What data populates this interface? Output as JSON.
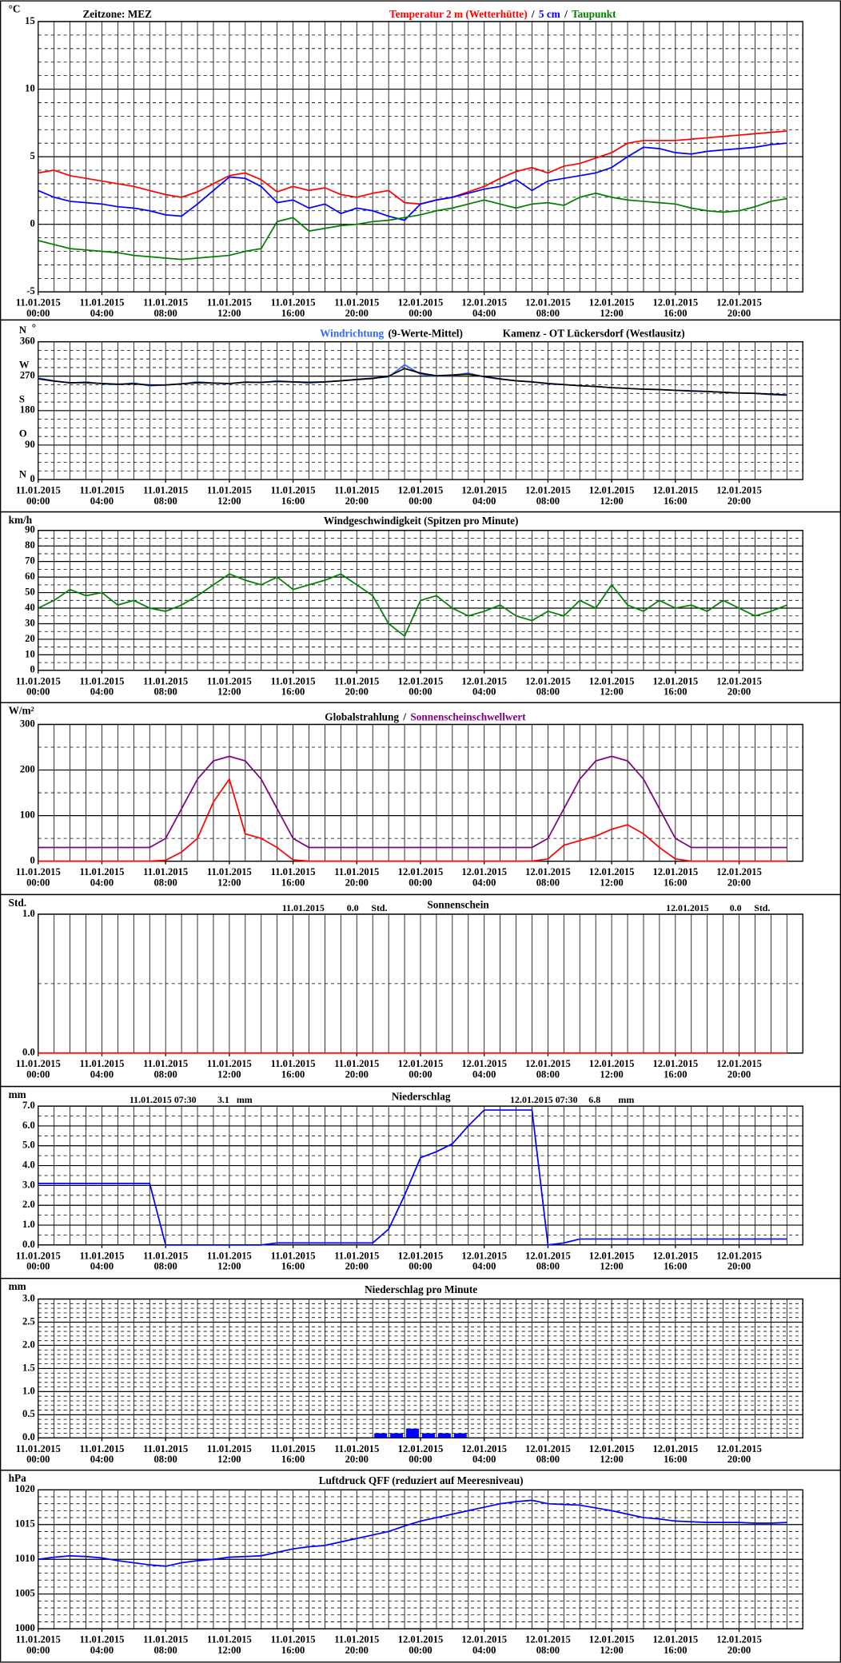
{
  "time_axis": {
    "x": [
      "11.01.2015 00:00",
      "11.01.2015 01:00",
      "11.01.2015 02:00",
      "11.01.2015 03:00",
      "11.01.2015 04:00",
      "11.01.2015 05:00",
      "11.01.2015 06:00",
      "11.01.2015 07:00",
      "11.01.2015 08:00",
      "11.01.2015 09:00",
      "11.01.2015 10:00",
      "11.01.2015 11:00",
      "11.01.2015 12:00",
      "11.01.2015 13:00",
      "11.01.2015 14:00",
      "11.01.2015 15:00",
      "11.01.2015 16:00",
      "11.01.2015 17:00",
      "11.01.2015 18:00",
      "11.01.2015 19:00",
      "11.01.2015 20:00",
      "11.01.2015 21:00",
      "11.01.2015 22:00",
      "11.01.2015 23:00",
      "12.01.2015 00:00",
      "12.01.2015 01:00",
      "12.01.2015 02:00",
      "12.01.2015 03:00",
      "12.01.2015 04:00",
      "12.01.2015 05:00",
      "12.01.2015 06:00",
      "12.01.2015 07:00",
      "12.01.2015 08:00",
      "12.01.2015 09:00",
      "12.01.2015 10:00",
      "12.01.2015 11:00",
      "12.01.2015 12:00",
      "12.01.2015 13:00",
      "12.01.2015 14:00",
      "12.01.2015 15:00",
      "12.01.2015 16:00",
      "12.01.2015 17:00",
      "12.01.2015 18:00",
      "12.01.2015 19:00",
      "12.01.2015 20:00",
      "12.01.2015 21:00",
      "12.01.2015 22:00",
      "12.01.2015 23:00"
    ],
    "ticks": [
      {
        "date": "11.01.2015",
        "time": "00:00"
      },
      {
        "date": "11.01.2015",
        "time": "04:00"
      },
      {
        "date": "11.01.2015",
        "time": "08:00"
      },
      {
        "date": "11.01.2015",
        "time": "12:00"
      },
      {
        "date": "11.01.2015",
        "time": "16:00"
      },
      {
        "date": "11.01.2015",
        "time": "20:00"
      },
      {
        "date": "12.01.2015",
        "time": "00:00"
      },
      {
        "date": "12.01.2015",
        "time": "04:00"
      },
      {
        "date": "12.01.2015",
        "time": "08:00"
      },
      {
        "date": "12.01.2015",
        "time": "12:00"
      },
      {
        "date": "12.01.2015",
        "time": "16:00"
      },
      {
        "date": "12.01.2015",
        "time": "20:00"
      }
    ]
  },
  "chart_data": [
    {
      "type": "line",
      "unit": "°C",
      "annotations": [
        "Zeitzone: MEZ"
      ],
      "legend_separator": "/",
      "ylim": [
        -5,
        15
      ],
      "yticks": [
        -5,
        0,
        5,
        10,
        15
      ],
      "minor_step": 1,
      "grid": true,
      "series": [
        {
          "name": "Temperatur 2 m (Wetterhütte)",
          "color": "#ff0000",
          "values": [
            3.8,
            4.0,
            3.6,
            3.4,
            3.2,
            3.0,
            2.8,
            2.5,
            2.2,
            2.0,
            2.4,
            3.0,
            3.6,
            3.8,
            3.3,
            2.4,
            2.8,
            2.5,
            2.7,
            2.2,
            2.0,
            2.3,
            2.5,
            1.6,
            1.5,
            1.8,
            2.0,
            2.4,
            2.8,
            3.4,
            3.9,
            4.2,
            3.8,
            4.3,
            4.5,
            4.9,
            5.3,
            6.0,
            6.2,
            6.2,
            6.2,
            6.3,
            6.4,
            6.5,
            6.6,
            6.7,
            6.8,
            6.9
          ]
        },
        {
          "name": "5 cm",
          "color": "#0000ff",
          "values": [
            2.5,
            2.0,
            1.7,
            1.6,
            1.5,
            1.3,
            1.2,
            1.0,
            0.7,
            0.6,
            1.5,
            2.5,
            3.5,
            3.4,
            2.8,
            1.6,
            1.8,
            1.2,
            1.5,
            0.8,
            1.2,
            1.0,
            0.6,
            0.3,
            1.5,
            1.8,
            2.0,
            2.3,
            2.6,
            2.8,
            3.3,
            2.5,
            3.2,
            3.4,
            3.6,
            3.8,
            4.2,
            5.0,
            5.7,
            5.6,
            5.3,
            5.2,
            5.4,
            5.5,
            5.6,
            5.7,
            5.9,
            6.0
          ]
        },
        {
          "name": "Taupunkt",
          "color": "#008000",
          "values": [
            -1.2,
            -1.5,
            -1.8,
            -1.9,
            -2.0,
            -2.1,
            -2.3,
            -2.4,
            -2.5,
            -2.6,
            -2.5,
            -2.4,
            -2.3,
            -2.0,
            -1.8,
            0.2,
            0.5,
            -0.5,
            -0.3,
            -0.1,
            0.0,
            0.2,
            0.3,
            0.5,
            0.7,
            1.0,
            1.2,
            1.5,
            1.8,
            1.5,
            1.2,
            1.5,
            1.6,
            1.4,
            2.0,
            2.3,
            2.0,
            1.8,
            1.7,
            1.6,
            1.5,
            1.2,
            1.0,
            0.9,
            1.0,
            1.3,
            1.7,
            1.9
          ]
        }
      ]
    },
    {
      "type": "line",
      "unit": "°",
      "annotations": [
        "Kamenz - OT Lückersdorf (Westlausitz)"
      ],
      "ylim": [
        0,
        360
      ],
      "yticks": [
        0,
        90,
        180,
        270,
        360
      ],
      "direction_labels": [
        "N",
        "O",
        "S",
        "W",
        "N"
      ],
      "minor_step": 22.5,
      "grid": true,
      "series": [
        {
          "name": "Windrichtung",
          "color": "#3366ff",
          "values": [
            265,
            258,
            252,
            255,
            250,
            248,
            252,
            245,
            247,
            250,
            255,
            252,
            250,
            255,
            253,
            258,
            255,
            252,
            255,
            258,
            262,
            265,
            268,
            300,
            275,
            270,
            272,
            278,
            268,
            262,
            258,
            255,
            250,
            248,
            245,
            243,
            240,
            238,
            236,
            235,
            233,
            232,
            230,
            228,
            226,
            225,
            222,
            220
          ]
        },
        {
          "name": "(9-Werte-Mittel)",
          "color": "#000000",
          "values": [
            263,
            257,
            253,
            253,
            251,
            249,
            250,
            247,
            247,
            250,
            253,
            252,
            251,
            254,
            254,
            256,
            255,
            254,
            255,
            258,
            261,
            264,
            270,
            290,
            278,
            271,
            273,
            275,
            269,
            263,
            258,
            255,
            251,
            248,
            245,
            243,
            240,
            238,
            236,
            235,
            233,
            231,
            230,
            228,
            226,
            225,
            223,
            221
          ]
        }
      ]
    },
    {
      "type": "line",
      "unit": "km/h",
      "title": "Windgeschwindigkeit (Spitzen pro Minute)",
      "ylim": [
        0,
        90
      ],
      "yticks": [
        0,
        10,
        20,
        30,
        40,
        50,
        60,
        70,
        80,
        90
      ],
      "minor_step": 5,
      "grid": true,
      "series": [
        {
          "color": "#008000",
          "values": [
            40,
            45,
            52,
            48,
            50,
            42,
            45,
            40,
            38,
            42,
            48,
            55,
            62,
            58,
            55,
            60,
            52,
            55,
            58,
            62,
            55,
            48,
            30,
            22,
            45,
            48,
            40,
            35,
            38,
            42,
            35,
            32,
            38,
            35,
            45,
            40,
            55,
            42,
            38,
            45,
            40,
            42,
            38,
            45,
            40,
            35,
            38,
            42
          ]
        }
      ]
    },
    {
      "type": "line",
      "unit": "W/m²",
      "legend_separator": "/",
      "ylim": [
        0,
        300
      ],
      "yticks": [
        0,
        100,
        200,
        300
      ],
      "minor_step": 50,
      "grid": true,
      "series": [
        {
          "name": "Globalstrahlung",
          "color": "#ff0000",
          "label_color": "#000000",
          "values": [
            0,
            0,
            0,
            0,
            0,
            0,
            0,
            0,
            2,
            20,
            50,
            130,
            180,
            60,
            50,
            30,
            3,
            0,
            0,
            0,
            0,
            0,
            0,
            0,
            0,
            0,
            0,
            0,
            0,
            0,
            0,
            0,
            5,
            35,
            45,
            55,
            70,
            80,
            60,
            30,
            5,
            0,
            0,
            0,
            0,
            0,
            0,
            0
          ]
        },
        {
          "name": "Sonnenscheinschwellwert",
          "color": "#800080",
          "values": [
            30,
            30,
            30,
            30,
            30,
            30,
            30,
            30,
            50,
            115,
            180,
            220,
            230,
            220,
            180,
            115,
            50,
            30,
            30,
            30,
            30,
            30,
            30,
            30,
            30,
            30,
            30,
            30,
            30,
            30,
            30,
            30,
            50,
            115,
            180,
            220,
            230,
            220,
            180,
            115,
            50,
            30,
            30,
            30,
            30,
            30,
            30,
            30
          ]
        }
      ]
    },
    {
      "type": "line",
      "unit": "Std.",
      "title": "Sonnenschein",
      "annotations": [
        "11.01.2015",
        "0.0",
        "Std.",
        "12.01.2015",
        "0.0",
        "Std."
      ],
      "ylim": [
        0,
        1
      ],
      "yticks": [
        {
          "value": 0,
          "label": "0.0"
        },
        {
          "value": 1,
          "label": "1.0"
        }
      ],
      "minor_step": 0.5,
      "grid": true,
      "series": [
        {
          "color": "#ff0000",
          "values": [
            0,
            0,
            0,
            0,
            0,
            0,
            0,
            0,
            0,
            0,
            0,
            0,
            0,
            0,
            0,
            0,
            0,
            0,
            0,
            0,
            0,
            0,
            0,
            0,
            0,
            0,
            0,
            0,
            0,
            0,
            0,
            0,
            0,
            0,
            0,
            0,
            0,
            0,
            0,
            0,
            0,
            0,
            0,
            0,
            0,
            0,
            0,
            0
          ]
        }
      ]
    },
    {
      "type": "line",
      "unit": "mm",
      "title": "Niederschlag",
      "annotations": [
        "11.01.2015 07:30",
        "3.1",
        "mm",
        "12.01.2015 07:30",
        "6.8",
        "mm"
      ],
      "ylim": [
        0,
        7
      ],
      "yticks": [
        {
          "value": 0,
          "label": "0.0"
        },
        {
          "value": 1,
          "label": "1.0"
        },
        {
          "value": 2,
          "label": "2.0"
        },
        {
          "value": 3,
          "label": "3.0"
        },
        {
          "value": 4,
          "label": "4.0"
        },
        {
          "value": 5,
          "label": "5.0"
        },
        {
          "value": 6,
          "label": "6.0"
        },
        {
          "value": 7,
          "label": "7.0"
        }
      ],
      "minor_step": 0.5,
      "grid": true,
      "series": [
        {
          "color": "#0000ff",
          "values": [
            3.1,
            3.1,
            3.1,
            3.1,
            3.1,
            3.1,
            3.1,
            3.1,
            0.0,
            0.0,
            0.0,
            0.0,
            0.0,
            0.0,
            0.0,
            0.1,
            0.1,
            0.1,
            0.1,
            0.1,
            0.1,
            0.1,
            0.8,
            2.5,
            4.4,
            4.7,
            5.1,
            6.0,
            6.8,
            6.8,
            6.8,
            6.8,
            0.0,
            0.1,
            0.3,
            0.3,
            0.3,
            0.3,
            0.3,
            0.3,
            0.3,
            0.3,
            0.3,
            0.3,
            0.3,
            0.3,
            0.3,
            0.3
          ]
        }
      ]
    },
    {
      "type": "bar",
      "unit": "mm",
      "title": "Niederschlag pro Minute",
      "ylim": [
        0,
        3
      ],
      "yticks": [
        {
          "value": 0,
          "label": "0.0"
        },
        {
          "value": 0.5,
          "label": "0.5"
        },
        {
          "value": 1,
          "label": "1.0"
        },
        {
          "value": 1.5,
          "label": "1.5"
        },
        {
          "value": 2,
          "label": "2.0"
        },
        {
          "value": 2.5,
          "label": "2.5"
        },
        {
          "value": 3,
          "label": "3.0"
        }
      ],
      "minor_step": 0.1,
      "grid": true,
      "series": [
        {
          "color": "#0000ff",
          "values": [
            0,
            0,
            0,
            0,
            0,
            0,
            0,
            0,
            0,
            0,
            0,
            0,
            0,
            0,
            0,
            0,
            0,
            0,
            0,
            0,
            0,
            0.1,
            0.1,
            0.2,
            0.1,
            0.1,
            0.1,
            0,
            0,
            0,
            0,
            0,
            0,
            0,
            0,
            0,
            0,
            0,
            0,
            0,
            0,
            0,
            0,
            0,
            0,
            0,
            0,
            0
          ]
        }
      ]
    },
    {
      "type": "line",
      "unit": "hPa",
      "title": "Luftdruck QFF (reduziert auf Meeresniveau)",
      "ylim": [
        1000,
        1020
      ],
      "yticks": [
        1000,
        1005,
        1010,
        1015,
        1020
      ],
      "minor_step": 1,
      "grid": true,
      "series": [
        {
          "color": "#0000ff",
          "values": [
            1010.0,
            1010.3,
            1010.5,
            1010.4,
            1010.2,
            1009.8,
            1009.5,
            1009.2,
            1009.0,
            1009.5,
            1009.8,
            1010.0,
            1010.3,
            1010.4,
            1010.5,
            1011.0,
            1011.5,
            1011.8,
            1012.0,
            1012.5,
            1013.0,
            1013.5,
            1014.0,
            1014.8,
            1015.5,
            1016.0,
            1016.5,
            1017.0,
            1017.5,
            1018.0,
            1018.3,
            1018.5,
            1018.0,
            1017.9,
            1017.8,
            1017.4,
            1017.0,
            1016.5,
            1016.0,
            1015.8,
            1015.5,
            1015.4,
            1015.3,
            1015.3,
            1015.3,
            1015.2,
            1015.2,
            1015.3
          ]
        }
      ]
    }
  ]
}
